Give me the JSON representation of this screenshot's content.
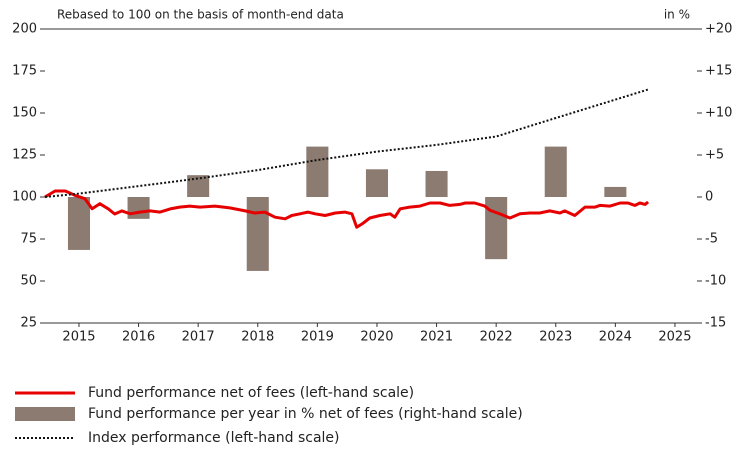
{
  "chart_data": {
    "type": "combo",
    "subtitle": "Rebased to 100 on the basis of month-end data",
    "y2_unit": "in %",
    "xlim": [
      2014.43,
      2025.37
    ],
    "xticks": [
      2015,
      2016,
      2017,
      2018,
      2019,
      2020,
      2021,
      2022,
      2023,
      2024,
      2025
    ],
    "ylim": [
      25,
      200
    ],
    "yticks": [
      25,
      50,
      75,
      100,
      125,
      150,
      175,
      200
    ],
    "y2lim": [
      -15,
      20
    ],
    "y2ticks": [
      -15,
      -10,
      -5,
      0,
      {
        "value": 5,
        "label": "+5"
      },
      {
        "value": 10,
        "label": "+10"
      },
      {
        "value": 15,
        "label": "+15"
      },
      {
        "value": 20,
        "label": "+20"
      }
    ],
    "series": [
      {
        "name": "Fund performance net of fees (left-hand scale)",
        "kind": "line",
        "linestyle": "solid",
        "color": "#e60000",
        "x": [
          2014.43,
          2014.6,
          2014.77,
          2014.93,
          2015.1,
          2015.22,
          2015.35,
          2015.49,
          2015.6,
          2015.72,
          2015.86,
          2016.02,
          2016.19,
          2016.36,
          2016.53,
          2016.69,
          2016.86,
          2017.03,
          2017.28,
          2017.53,
          2017.79,
          2017.95,
          2018.12,
          2018.29,
          2018.46,
          2018.57,
          2018.71,
          2018.84,
          2018.96,
          2019.13,
          2019.3,
          2019.46,
          2019.58,
          2019.66,
          2019.75,
          2019.88,
          2020.05,
          2020.22,
          2020.3,
          2020.39,
          2020.55,
          2020.72,
          2020.89,
          2021.06,
          2021.22,
          2021.39,
          2021.48,
          2021.64,
          2021.81,
          2021.9,
          2022.06,
          2022.23,
          2022.4,
          2022.57,
          2022.73,
          2022.9,
          2023.07,
          2023.15,
          2023.32,
          2023.49,
          2023.66,
          2023.74,
          2023.91,
          2024.08,
          2024.21,
          2024.33,
          2024.41,
          2024.5,
          2024.55
        ],
        "values": [
          100,
          103.6,
          103.6,
          101,
          99,
          93,
          96,
          93,
          89.9,
          91.7,
          90,
          91,
          91.7,
          91,
          92.9,
          94,
          94.6,
          94,
          94.6,
          93.5,
          91.7,
          90.5,
          91,
          88,
          87,
          89,
          90,
          91,
          90,
          89,
          90.5,
          91,
          90,
          82,
          84,
          87.5,
          89,
          90,
          88,
          93,
          94,
          94.6,
          96.4,
          96.4,
          95,
          95.6,
          96.4,
          96.4,
          94.6,
          92,
          90,
          87.5,
          90,
          90.5,
          90.5,
          91.7,
          90.5,
          91.7,
          89,
          94,
          94,
          95,
          94.6,
          96.4,
          96.4,
          95,
          96.4,
          95.6,
          97
        ]
      },
      {
        "name": "Fund performance per year in % net of fees (right-hand scale)",
        "kind": "bar",
        "axis": "y2",
        "color": "#8c7b70",
        "x": [
          2015,
          2016,
          2017,
          2018,
          2019,
          2020,
          2021,
          2022,
          2023,
          2024
        ],
        "values": [
          -6.3,
          -2.6,
          2.6,
          -8.8,
          6.0,
          3.3,
          3.1,
          -7.4,
          6.0,
          1.2
        ]
      },
      {
        "name": "Index performance (left-hand scale)",
        "kind": "line",
        "linestyle": "dotted",
        "color": "#111111",
        "x": [
          2014.43,
          2015,
          2016,
          2017,
          2018,
          2019,
          2020,
          2021,
          2022,
          2023,
          2024,
          2024.55
        ],
        "values": [
          100,
          102,
          106.5,
          111,
          116,
          122,
          127,
          131,
          136,
          147,
          158,
          164
        ]
      }
    ]
  }
}
